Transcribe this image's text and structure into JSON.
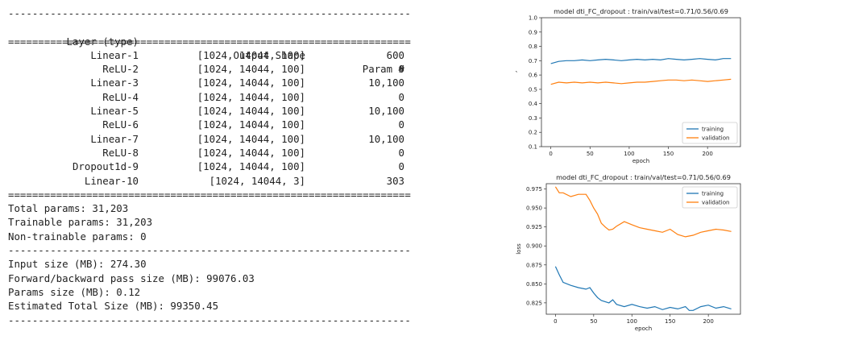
{
  "summary": {
    "rule_dash": "--------------------------------------------------------------------",
    "rule_eq": "====================================================================",
    "headers": {
      "layer": "Layer (type)",
      "shape": "Output Shape",
      "param": "Param #"
    },
    "rows": [
      {
        "layer": "Linear-1",
        "shape": "[1024, 14044, 100]",
        "param": "600"
      },
      {
        "layer": "ReLU-2",
        "shape": "[1024, 14044, 100]",
        "param": "0"
      },
      {
        "layer": "Linear-3",
        "shape": "[1024, 14044, 100]",
        "param": "10,100"
      },
      {
        "layer": "ReLU-4",
        "shape": "[1024, 14044, 100]",
        "param": "0"
      },
      {
        "layer": "Linear-5",
        "shape": "[1024, 14044, 100]",
        "param": "10,100"
      },
      {
        "layer": "ReLU-6",
        "shape": "[1024, 14044, 100]",
        "param": "0"
      },
      {
        "layer": "Linear-7",
        "shape": "[1024, 14044, 100]",
        "param": "10,100"
      },
      {
        "layer": "ReLU-8",
        "shape": "[1024, 14044, 100]",
        "param": "0"
      },
      {
        "layer": "Dropout1d-9",
        "shape": "[1024, 14044, 100]",
        "param": "0"
      },
      {
        "layer": "Linear-10",
        "shape": "[1024, 14044, 3]",
        "param": "303"
      }
    ],
    "total_params": "Total params: 31,203",
    "trainable_params": "Trainable params: 31,203",
    "non_trainable_params": "Non-trainable params: 0",
    "input_size": "Input size (MB): 274.30",
    "fwd_bwd_size": "Forward/backward pass size (MB): 99076.03",
    "params_size": "Params size (MB): 0.12",
    "estimated_total": "Estimated Total Size (MB): 99350.45"
  },
  "colors": {
    "training": "#1f77b4",
    "validation": "#ff7f0e",
    "axis": "#333333",
    "text": "#222222"
  },
  "chart_data": [
    {
      "type": "line",
      "title": "model dti_FC_dropout : train/val/test=0.71/0.56/0.69",
      "xlabel": "epoch",
      "ylabel": "accuracy",
      "xlim": [
        -12,
        242
      ],
      "ylim": [
        0.1,
        1.0
      ],
      "xticks": [
        0,
        50,
        100,
        150,
        200
      ],
      "yticks": [
        0.1,
        0.2,
        0.3,
        0.4,
        0.5,
        0.6,
        0.7,
        0.8,
        0.9,
        1.0
      ],
      "ytick_labels": [
        "0.1",
        "0.2",
        "0.3",
        "0.4",
        "0.5",
        "0.6",
        "0.7",
        "0.8",
        "0.9",
        "1.0"
      ],
      "legend": "lower-right",
      "series": [
        {
          "name": "training",
          "x": [
            0,
            10,
            20,
            30,
            40,
            50,
            60,
            70,
            80,
            90,
            100,
            110,
            120,
            130,
            140,
            150,
            160,
            170,
            180,
            190,
            200,
            210,
            220,
            230
          ],
          "y": [
            0.68,
            0.695,
            0.7,
            0.7,
            0.705,
            0.7,
            0.705,
            0.71,
            0.705,
            0.7,
            0.705,
            0.71,
            0.705,
            0.71,
            0.705,
            0.715,
            0.71,
            0.705,
            0.71,
            0.715,
            0.71,
            0.705,
            0.715,
            0.715
          ]
        },
        {
          "name": "validation",
          "x": [
            0,
            10,
            20,
            30,
            40,
            50,
            60,
            70,
            80,
            90,
            100,
            110,
            120,
            130,
            140,
            150,
            160,
            170,
            180,
            190,
            200,
            210,
            220,
            230
          ],
          "y": [
            0.535,
            0.55,
            0.545,
            0.55,
            0.545,
            0.55,
            0.545,
            0.55,
            0.545,
            0.54,
            0.545,
            0.55,
            0.55,
            0.555,
            0.56,
            0.565,
            0.565,
            0.56,
            0.565,
            0.56,
            0.555,
            0.56,
            0.565,
            0.57
          ]
        }
      ]
    },
    {
      "type": "line",
      "title": "model dti_FC_dropout : train/val/test=0.71/0.56/0.69",
      "xlabel": "epoch",
      "ylabel": "loss",
      "xlim": [
        -12,
        242
      ],
      "ylim": [
        0.81,
        0.982
      ],
      "xticks": [
        0,
        50,
        100,
        150,
        200
      ],
      "yticks": [
        0.825,
        0.85,
        0.875,
        0.9,
        0.925,
        0.95,
        0.975
      ],
      "ytick_labels": [
        "0.825",
        "0.850",
        "0.875",
        "0.900",
        "0.925",
        "0.950",
        "0.975"
      ],
      "legend": "top-right",
      "series": [
        {
          "name": "training",
          "x": [
            0,
            5,
            10,
            20,
            30,
            40,
            45,
            50,
            55,
            60,
            70,
            75,
            80,
            90,
            100,
            110,
            120,
            130,
            140,
            150,
            160,
            170,
            175,
            180,
            190,
            200,
            210,
            220,
            230
          ],
          "y": [
            0.873,
            0.862,
            0.852,
            0.848,
            0.845,
            0.843,
            0.845,
            0.838,
            0.832,
            0.828,
            0.825,
            0.829,
            0.823,
            0.82,
            0.823,
            0.82,
            0.818,
            0.82,
            0.816,
            0.819,
            0.817,
            0.82,
            0.815,
            0.815,
            0.82,
            0.822,
            0.818,
            0.82,
            0.817
          ]
        },
        {
          "name": "validation",
          "x": [
            0,
            5,
            10,
            20,
            30,
            40,
            45,
            50,
            55,
            60,
            65,
            70,
            75,
            80,
            90,
            100,
            110,
            120,
            130,
            140,
            150,
            160,
            170,
            180,
            190,
            200,
            210,
            220,
            230
          ],
          "y": [
            0.978,
            0.97,
            0.97,
            0.965,
            0.968,
            0.968,
            0.96,
            0.95,
            0.942,
            0.93,
            0.925,
            0.921,
            0.922,
            0.926,
            0.932,
            0.928,
            0.924,
            0.922,
            0.92,
            0.918,
            0.922,
            0.915,
            0.912,
            0.914,
            0.918,
            0.92,
            0.922,
            0.921,
            0.919
          ]
        }
      ]
    }
  ]
}
